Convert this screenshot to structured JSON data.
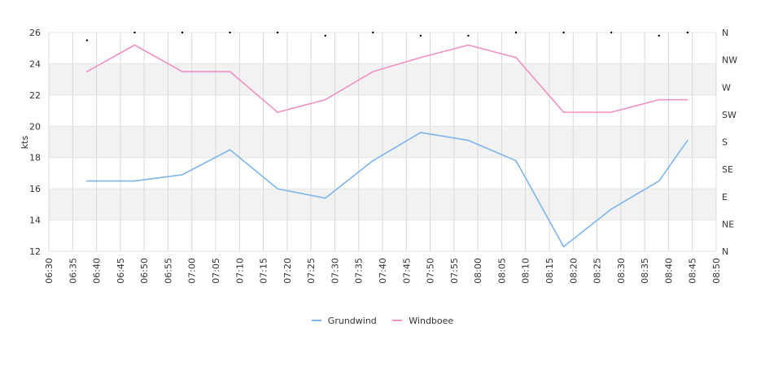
{
  "chart_data": {
    "type": "line",
    "title": "",
    "xlabel": "",
    "ylabel": "kts",
    "ylim": [
      12,
      26
    ],
    "y_ticks": [
      "12",
      "14",
      "16",
      "18",
      "20",
      "22",
      "24",
      "26"
    ],
    "right_axis_labels": [
      "N",
      "NE",
      "E",
      "SE",
      "S",
      "SW",
      "W",
      "NW",
      "N"
    ],
    "x_ticks": [
      "06:30",
      "06:35",
      "06:40",
      "06:45",
      "06:50",
      "06:55",
      "07:00",
      "07:05",
      "07:10",
      "07:15",
      "07:20",
      "07:25",
      "07:30",
      "07:35",
      "07:40",
      "07:45",
      "07:50",
      "07:55",
      "08:00",
      "08:05",
      "08:10",
      "08:15",
      "08:20",
      "08:25",
      "08:30",
      "08:35",
      "08:40",
      "08:45",
      "08:50"
    ],
    "x_range": [
      "06:30",
      "08:50"
    ],
    "grid": true,
    "legend_position": "bottom-center",
    "series": [
      {
        "name": "Grundwind",
        "color": "#7cb5ec",
        "x": [
          "06:38",
          "06:48",
          "06:58",
          "07:08",
          "07:18",
          "07:28",
          "07:38",
          "07:48",
          "07:58",
          "08:08",
          "08:18",
          "08:28",
          "08:38",
          "08:44"
        ],
        "values": [
          16.5,
          16.5,
          16.9,
          18.5,
          16.0,
          15.4,
          17.8,
          19.6,
          19.1,
          17.8,
          12.3,
          14.7,
          16.5,
          19.1
        ]
      },
      {
        "name": "Windboee",
        "color": "#f28fc4",
        "x": [
          "06:38",
          "06:48",
          "06:58",
          "07:08",
          "07:18",
          "07:28",
          "07:38",
          "07:48",
          "07:58",
          "08:08",
          "08:18",
          "08:28",
          "08:38",
          "08:44"
        ],
        "values": [
          23.5,
          25.2,
          23.5,
          23.5,
          20.9,
          21.7,
          23.5,
          24.4,
          25.2,
          24.4,
          20.9,
          20.9,
          21.7,
          21.7
        ]
      }
    ],
    "direction_markers": {
      "x": [
        "06:38",
        "06:48",
        "06:58",
        "07:08",
        "07:18",
        "07:28",
        "07:38",
        "07:48",
        "07:58",
        "08:08",
        "08:18",
        "08:28",
        "08:38",
        "08:44"
      ],
      "values": [
        25.5,
        26,
        26,
        26,
        26,
        25.8,
        26,
        25.8,
        25.8,
        26,
        26,
        26,
        25.8,
        26
      ]
    }
  }
}
